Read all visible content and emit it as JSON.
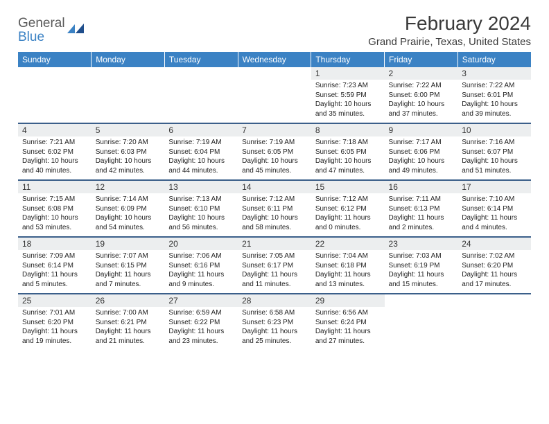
{
  "brand": {
    "line1": "General",
    "line2": "Blue"
  },
  "title": "February 2024",
  "location": "Grand Prairie, Texas, United States",
  "colors": {
    "header_bg": "#3b82c4",
    "header_text": "#ffffff",
    "daynum_bg": "#eceeef",
    "row_divider": "#3b5f8a",
    "text": "#222222"
  },
  "day_labels": [
    "Sunday",
    "Monday",
    "Tuesday",
    "Wednesday",
    "Thursday",
    "Friday",
    "Saturday"
  ],
  "weeks": [
    [
      {
        "n": "",
        "sr": "",
        "ss": "",
        "dl": ""
      },
      {
        "n": "",
        "sr": "",
        "ss": "",
        "dl": ""
      },
      {
        "n": "",
        "sr": "",
        "ss": "",
        "dl": ""
      },
      {
        "n": "",
        "sr": "",
        "ss": "",
        "dl": ""
      },
      {
        "n": "1",
        "sr": "Sunrise: 7:23 AM",
        "ss": "Sunset: 5:59 PM",
        "dl": "Daylight: 10 hours and 35 minutes."
      },
      {
        "n": "2",
        "sr": "Sunrise: 7:22 AM",
        "ss": "Sunset: 6:00 PM",
        "dl": "Daylight: 10 hours and 37 minutes."
      },
      {
        "n": "3",
        "sr": "Sunrise: 7:22 AM",
        "ss": "Sunset: 6:01 PM",
        "dl": "Daylight: 10 hours and 39 minutes."
      }
    ],
    [
      {
        "n": "4",
        "sr": "Sunrise: 7:21 AM",
        "ss": "Sunset: 6:02 PM",
        "dl": "Daylight: 10 hours and 40 minutes."
      },
      {
        "n": "5",
        "sr": "Sunrise: 7:20 AM",
        "ss": "Sunset: 6:03 PM",
        "dl": "Daylight: 10 hours and 42 minutes."
      },
      {
        "n": "6",
        "sr": "Sunrise: 7:19 AM",
        "ss": "Sunset: 6:04 PM",
        "dl": "Daylight: 10 hours and 44 minutes."
      },
      {
        "n": "7",
        "sr": "Sunrise: 7:19 AM",
        "ss": "Sunset: 6:05 PM",
        "dl": "Daylight: 10 hours and 45 minutes."
      },
      {
        "n": "8",
        "sr": "Sunrise: 7:18 AM",
        "ss": "Sunset: 6:05 PM",
        "dl": "Daylight: 10 hours and 47 minutes."
      },
      {
        "n": "9",
        "sr": "Sunrise: 7:17 AM",
        "ss": "Sunset: 6:06 PM",
        "dl": "Daylight: 10 hours and 49 minutes."
      },
      {
        "n": "10",
        "sr": "Sunrise: 7:16 AM",
        "ss": "Sunset: 6:07 PM",
        "dl": "Daylight: 10 hours and 51 minutes."
      }
    ],
    [
      {
        "n": "11",
        "sr": "Sunrise: 7:15 AM",
        "ss": "Sunset: 6:08 PM",
        "dl": "Daylight: 10 hours and 53 minutes."
      },
      {
        "n": "12",
        "sr": "Sunrise: 7:14 AM",
        "ss": "Sunset: 6:09 PM",
        "dl": "Daylight: 10 hours and 54 minutes."
      },
      {
        "n": "13",
        "sr": "Sunrise: 7:13 AM",
        "ss": "Sunset: 6:10 PM",
        "dl": "Daylight: 10 hours and 56 minutes."
      },
      {
        "n": "14",
        "sr": "Sunrise: 7:12 AM",
        "ss": "Sunset: 6:11 PM",
        "dl": "Daylight: 10 hours and 58 minutes."
      },
      {
        "n": "15",
        "sr": "Sunrise: 7:12 AM",
        "ss": "Sunset: 6:12 PM",
        "dl": "Daylight: 11 hours and 0 minutes."
      },
      {
        "n": "16",
        "sr": "Sunrise: 7:11 AM",
        "ss": "Sunset: 6:13 PM",
        "dl": "Daylight: 11 hours and 2 minutes."
      },
      {
        "n": "17",
        "sr": "Sunrise: 7:10 AM",
        "ss": "Sunset: 6:14 PM",
        "dl": "Daylight: 11 hours and 4 minutes."
      }
    ],
    [
      {
        "n": "18",
        "sr": "Sunrise: 7:09 AM",
        "ss": "Sunset: 6:14 PM",
        "dl": "Daylight: 11 hours and 5 minutes."
      },
      {
        "n": "19",
        "sr": "Sunrise: 7:07 AM",
        "ss": "Sunset: 6:15 PM",
        "dl": "Daylight: 11 hours and 7 minutes."
      },
      {
        "n": "20",
        "sr": "Sunrise: 7:06 AM",
        "ss": "Sunset: 6:16 PM",
        "dl": "Daylight: 11 hours and 9 minutes."
      },
      {
        "n": "21",
        "sr": "Sunrise: 7:05 AM",
        "ss": "Sunset: 6:17 PM",
        "dl": "Daylight: 11 hours and 11 minutes."
      },
      {
        "n": "22",
        "sr": "Sunrise: 7:04 AM",
        "ss": "Sunset: 6:18 PM",
        "dl": "Daylight: 11 hours and 13 minutes."
      },
      {
        "n": "23",
        "sr": "Sunrise: 7:03 AM",
        "ss": "Sunset: 6:19 PM",
        "dl": "Daylight: 11 hours and 15 minutes."
      },
      {
        "n": "24",
        "sr": "Sunrise: 7:02 AM",
        "ss": "Sunset: 6:20 PM",
        "dl": "Daylight: 11 hours and 17 minutes."
      }
    ],
    [
      {
        "n": "25",
        "sr": "Sunrise: 7:01 AM",
        "ss": "Sunset: 6:20 PM",
        "dl": "Daylight: 11 hours and 19 minutes."
      },
      {
        "n": "26",
        "sr": "Sunrise: 7:00 AM",
        "ss": "Sunset: 6:21 PM",
        "dl": "Daylight: 11 hours and 21 minutes."
      },
      {
        "n": "27",
        "sr": "Sunrise: 6:59 AM",
        "ss": "Sunset: 6:22 PM",
        "dl": "Daylight: 11 hours and 23 minutes."
      },
      {
        "n": "28",
        "sr": "Sunrise: 6:58 AM",
        "ss": "Sunset: 6:23 PM",
        "dl": "Daylight: 11 hours and 25 minutes."
      },
      {
        "n": "29",
        "sr": "Sunrise: 6:56 AM",
        "ss": "Sunset: 6:24 PM",
        "dl": "Daylight: 11 hours and 27 minutes."
      },
      {
        "n": "",
        "sr": "",
        "ss": "",
        "dl": ""
      },
      {
        "n": "",
        "sr": "",
        "ss": "",
        "dl": ""
      }
    ]
  ]
}
